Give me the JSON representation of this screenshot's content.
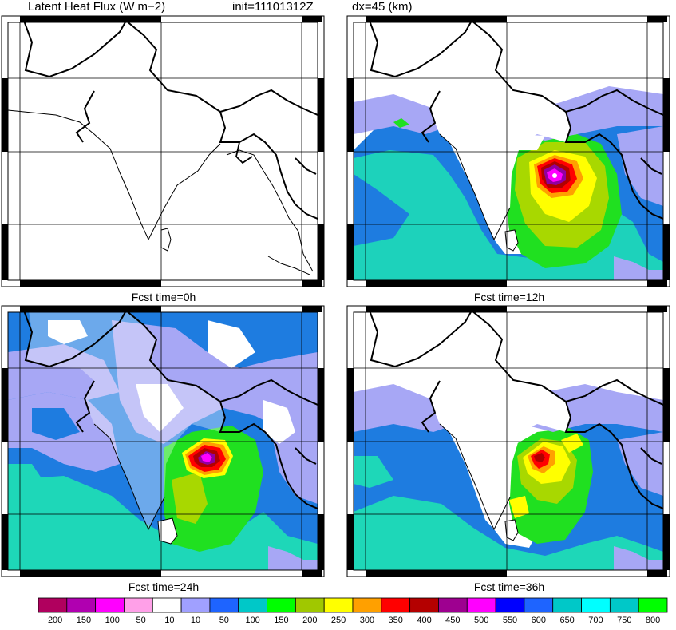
{
  "header": {
    "field": "Latent Heat Flux (W m−2)",
    "init": "init=11101312Z",
    "dx": "dx=45 (km)"
  },
  "panels": [
    {
      "id": "p0",
      "label": "Fcst time=0h"
    },
    {
      "id": "p12",
      "label": "Fcst time=12h"
    },
    {
      "id": "p24",
      "label": "Fcst time=24h"
    },
    {
      "id": "p36",
      "label": "Fcst time=36h"
    }
  ],
  "colorbar": {
    "labels": [
      "−200",
      "−150",
      "−100",
      "−50",
      "−10",
      "10",
      "50",
      "100",
      "150",
      "200",
      "250",
      "300",
      "350",
      "400",
      "450",
      "500",
      "550",
      "600",
      "650",
      "700",
      "750",
      "800"
    ],
    "colors": [
      "#b0005e",
      "#b000b0",
      "#ff00ff",
      "#ffa0e8",
      "#ffffff",
      "#a0a0ff",
      "#1e64ff",
      "#00c8c8",
      "#00ff00",
      "#a0c800",
      "#ffff00",
      "#ffa000",
      "#ff0000",
      "#b40000",
      "#9e0090",
      "#ff00ff",
      "#0000ff",
      "#1e64ff",
      "#00c8c8",
      "#00ffff",
      "#00c8c8",
      "#00ff00"
    ]
  },
  "colors": {
    "ocean_main": "#1e7ce0",
    "teal": "#1ed7b8",
    "lavender": "#a7a7f5",
    "green": "#20e020",
    "yellowgreen": "#a8d800",
    "yellow": "#ffff00",
    "orange": "#ffa000",
    "red": "#ff0000",
    "darkred": "#b00000",
    "purple": "#9000a0",
    "magenta": "#ff00ff"
  }
}
